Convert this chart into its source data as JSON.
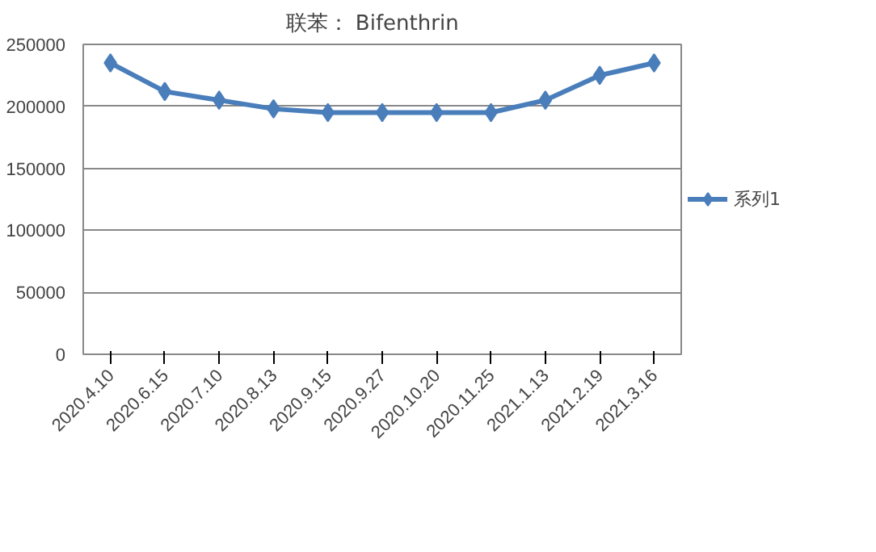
{
  "chart_data": {
    "type": "line",
    "title": "联苯：    Bifenthrin",
    "categories": [
      "2020.4.10",
      "2020.6.15",
      "2020.7.10",
      "2020.8.13",
      "2020.9.15",
      "2020.9.27",
      "2020.10.20",
      "2020.11.25",
      "2021.1.13",
      "2021.2.19",
      "2021.3.16"
    ],
    "series": [
      {
        "name": "系列1",
        "color": "#4a7ebb",
        "values": [
          235000,
          212000,
          205000,
          198000,
          195000,
          195000,
          195000,
          195000,
          205000,
          225000,
          235000
        ]
      }
    ],
    "ylim": [
      0,
      250000
    ],
    "yticks": [
      0,
      50000,
      100000,
      150000,
      200000,
      250000
    ],
    "grid": "y",
    "legend": "right",
    "marker": "diamond",
    "line_style": "solid"
  }
}
